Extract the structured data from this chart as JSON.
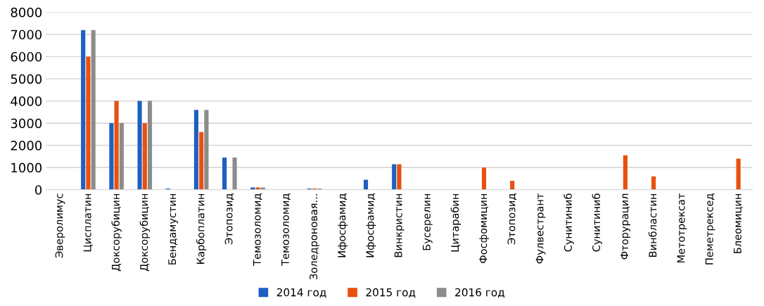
{
  "chart_data": {
    "type": "bar",
    "categories": [
      "Эверолимус",
      "Цисплатин",
      "Доксорубицин",
      "Доксорубицин",
      "Бендамустин",
      "Карбоплатин",
      "Этопозид",
      "Темозоломид",
      "Темозоломид",
      "Золедроновая...",
      "Ифосфамид",
      "Ифосфамид",
      "Винкристин",
      "Бусерелин",
      "Цитарабин",
      "Фосфомицин",
      "Этопозид",
      "Фулвестрант",
      "Сунитиниб",
      "Сунитиниб",
      "Фторурацил",
      "Винбластин",
      "Метотрексат",
      "Пеметрексед",
      "Блеомицин"
    ],
    "series": [
      {
        "name": "2014 год",
        "color": "#1f5fc4",
        "values": [
          null,
          7200,
          3000,
          4000,
          50,
          3600,
          1450,
          100,
          null,
          50,
          null,
          450,
          1150,
          null,
          null,
          null,
          null,
          null,
          null,
          null,
          null,
          null,
          null,
          null,
          null
        ]
      },
      {
        "name": "2015 год",
        "color": "#e8500e",
        "values": [
          null,
          6000,
          4000,
          3000,
          null,
          2600,
          null,
          100,
          null,
          50,
          null,
          null,
          1150,
          null,
          null,
          1000,
          400,
          null,
          null,
          null,
          1550,
          600,
          null,
          null,
          1400
        ]
      },
      {
        "name": "2016 год",
        "color": "#8c8c8c",
        "values": [
          null,
          7200,
          3000,
          4000,
          null,
          3600,
          1450,
          100,
          null,
          50,
          null,
          null,
          null,
          null,
          null,
          null,
          null,
          null,
          null,
          null,
          null,
          null,
          null,
          null,
          null
        ]
      }
    ],
    "ylim": [
      0,
      8000
    ],
    "yticks": [
      0,
      1000,
      2000,
      3000,
      4000,
      5000,
      6000,
      7000,
      8000
    ],
    "grid": "y",
    "legend": "bottom"
  }
}
